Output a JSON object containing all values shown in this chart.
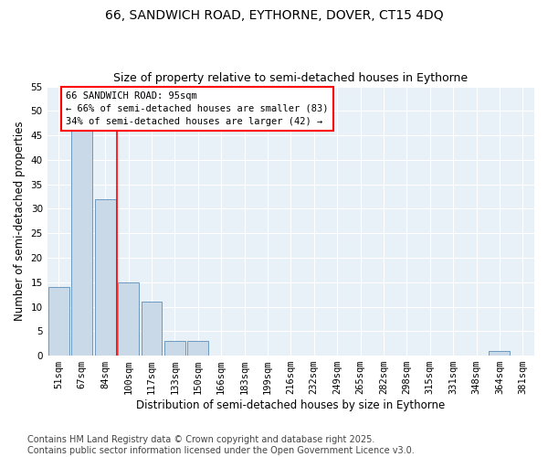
{
  "title_line1": "66, SANDWICH ROAD, EYTHORNE, DOVER, CT15 4DQ",
  "title_line2": "Size of property relative to semi-detached houses in Eythorne",
  "xlabel": "Distribution of semi-detached houses by size in Eythorne",
  "ylabel": "Number of semi-detached properties",
  "categories": [
    "51sqm",
    "67sqm",
    "84sqm",
    "100sqm",
    "117sqm",
    "133sqm",
    "150sqm",
    "166sqm",
    "183sqm",
    "199sqm",
    "216sqm",
    "232sqm",
    "249sqm",
    "265sqm",
    "282sqm",
    "298sqm",
    "315sqm",
    "331sqm",
    "348sqm",
    "364sqm",
    "381sqm"
  ],
  "values": [
    14,
    46,
    32,
    15,
    11,
    3,
    3,
    0,
    0,
    0,
    0,
    0,
    0,
    0,
    0,
    0,
    0,
    0,
    0,
    1,
    0
  ],
  "bar_color": "#c9d9e8",
  "bar_edge_color": "#5b8db8",
  "vline_x": 2.5,
  "vline_color": "red",
  "annotation_box_text": "66 SANDWICH ROAD: 95sqm\n← 66% of semi-detached houses are smaller (83)\n34% of semi-detached houses are larger (42) →",
  "ylim": [
    0,
    55
  ],
  "yticks": [
    0,
    5,
    10,
    15,
    20,
    25,
    30,
    35,
    40,
    45,
    50,
    55
  ],
  "background_color": "#e8f0f8",
  "footer_text": "Contains HM Land Registry data © Crown copyright and database right 2025.\nContains public sector information licensed under the Open Government Licence v3.0.",
  "title_fontsize": 10,
  "subtitle_fontsize": 9,
  "axis_label_fontsize": 8.5,
  "tick_fontsize": 7.5,
  "annotation_fontsize": 7.5,
  "footer_fontsize": 7
}
